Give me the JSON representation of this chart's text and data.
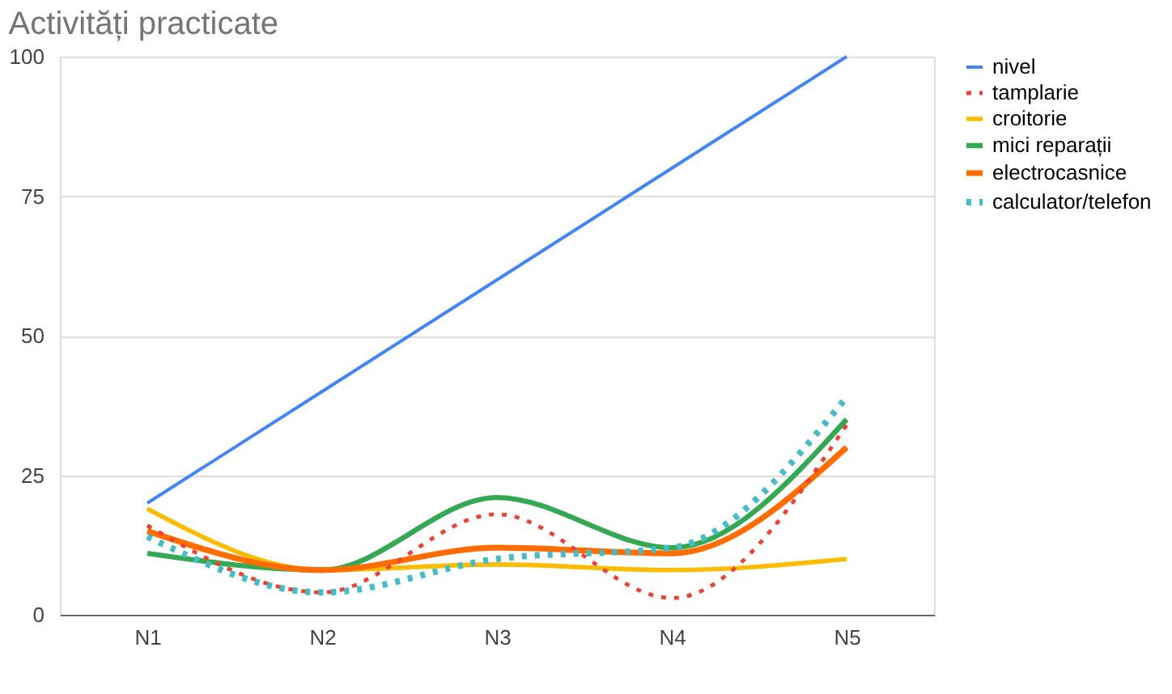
{
  "chart_data": {
    "type": "line",
    "title": "Activități practicate",
    "categories": [
      "N1",
      "N2",
      "N3",
      "N4",
      "N5"
    ],
    "series": [
      {
        "name": "nivel",
        "color": "#4285f4",
        "line_style": "solid",
        "values": [
          20,
          40,
          60,
          80,
          100
        ]
      },
      {
        "name": "tamplarie",
        "color": "#ea4335",
        "line_style": "dotted",
        "values": [
          16,
          4,
          18,
          3,
          34
        ]
      },
      {
        "name": "croitorie",
        "color": "#fbbc04",
        "line_style": "solid",
        "values": [
          19,
          8,
          9,
          8,
          10
        ]
      },
      {
        "name": "mici reparații",
        "color": "#34a853",
        "line_style": "solid",
        "values": [
          11,
          8,
          21,
          12,
          35
        ]
      },
      {
        "name": "electrocasnice",
        "color": "#ff6d01",
        "line_style": "solid",
        "values": [
          15,
          8,
          12,
          11,
          30
        ]
      },
      {
        "name": "calculator/telefon",
        "color": "#46bdc6",
        "line_style": "dotted",
        "values": [
          14,
          4,
          10,
          12,
          39
        ]
      }
    ],
    "ylim": [
      0,
      100
    ],
    "yticks": [
      0,
      25,
      50,
      75,
      100
    ],
    "grid": "y",
    "legend": "right",
    "marker": "none"
  }
}
